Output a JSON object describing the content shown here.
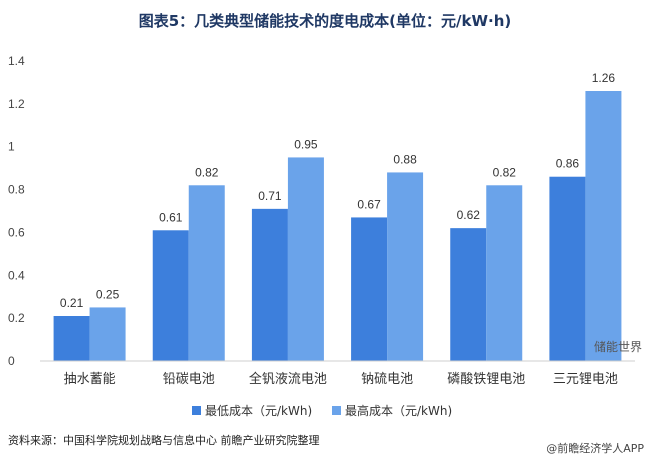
{
  "title": "图表5：几类典型储能技术的度电成本(单位：元/kW·h)",
  "source": "资料来源：中国科学院规划战略与信息中心 前瞻产业研究院整理",
  "brand_tag": "储能世界",
  "corner_tag": "@前瞻经济学人APP",
  "colors": {
    "low": "#3d7fdc",
    "high": "#6aa3ea",
    "axis_text": "#444444"
  },
  "chart_data": {
    "type": "bar",
    "categories": [
      "抽水蓄能",
      "铅碳电池",
      "全钒液流电池",
      "钠硫电池",
      "磷酸铁锂电池",
      "三元锂电池"
    ],
    "series": [
      {
        "name": "最低成本（元/kWh)",
        "values": [
          0.21,
          0.61,
          0.71,
          0.67,
          0.62,
          0.86
        ]
      },
      {
        "name": "最高成本（元/kWh)",
        "values": [
          0.25,
          0.82,
          0.95,
          0.88,
          0.82,
          1.26
        ]
      }
    ],
    "y_ticks": [
      "0",
      "0.2",
      "0.4",
      "0.6",
      "0.8",
      "1",
      "1.2",
      "1.4"
    ],
    "ylim": [
      0,
      1.4
    ],
    "legend_position": "bottom",
    "grid": false
  }
}
